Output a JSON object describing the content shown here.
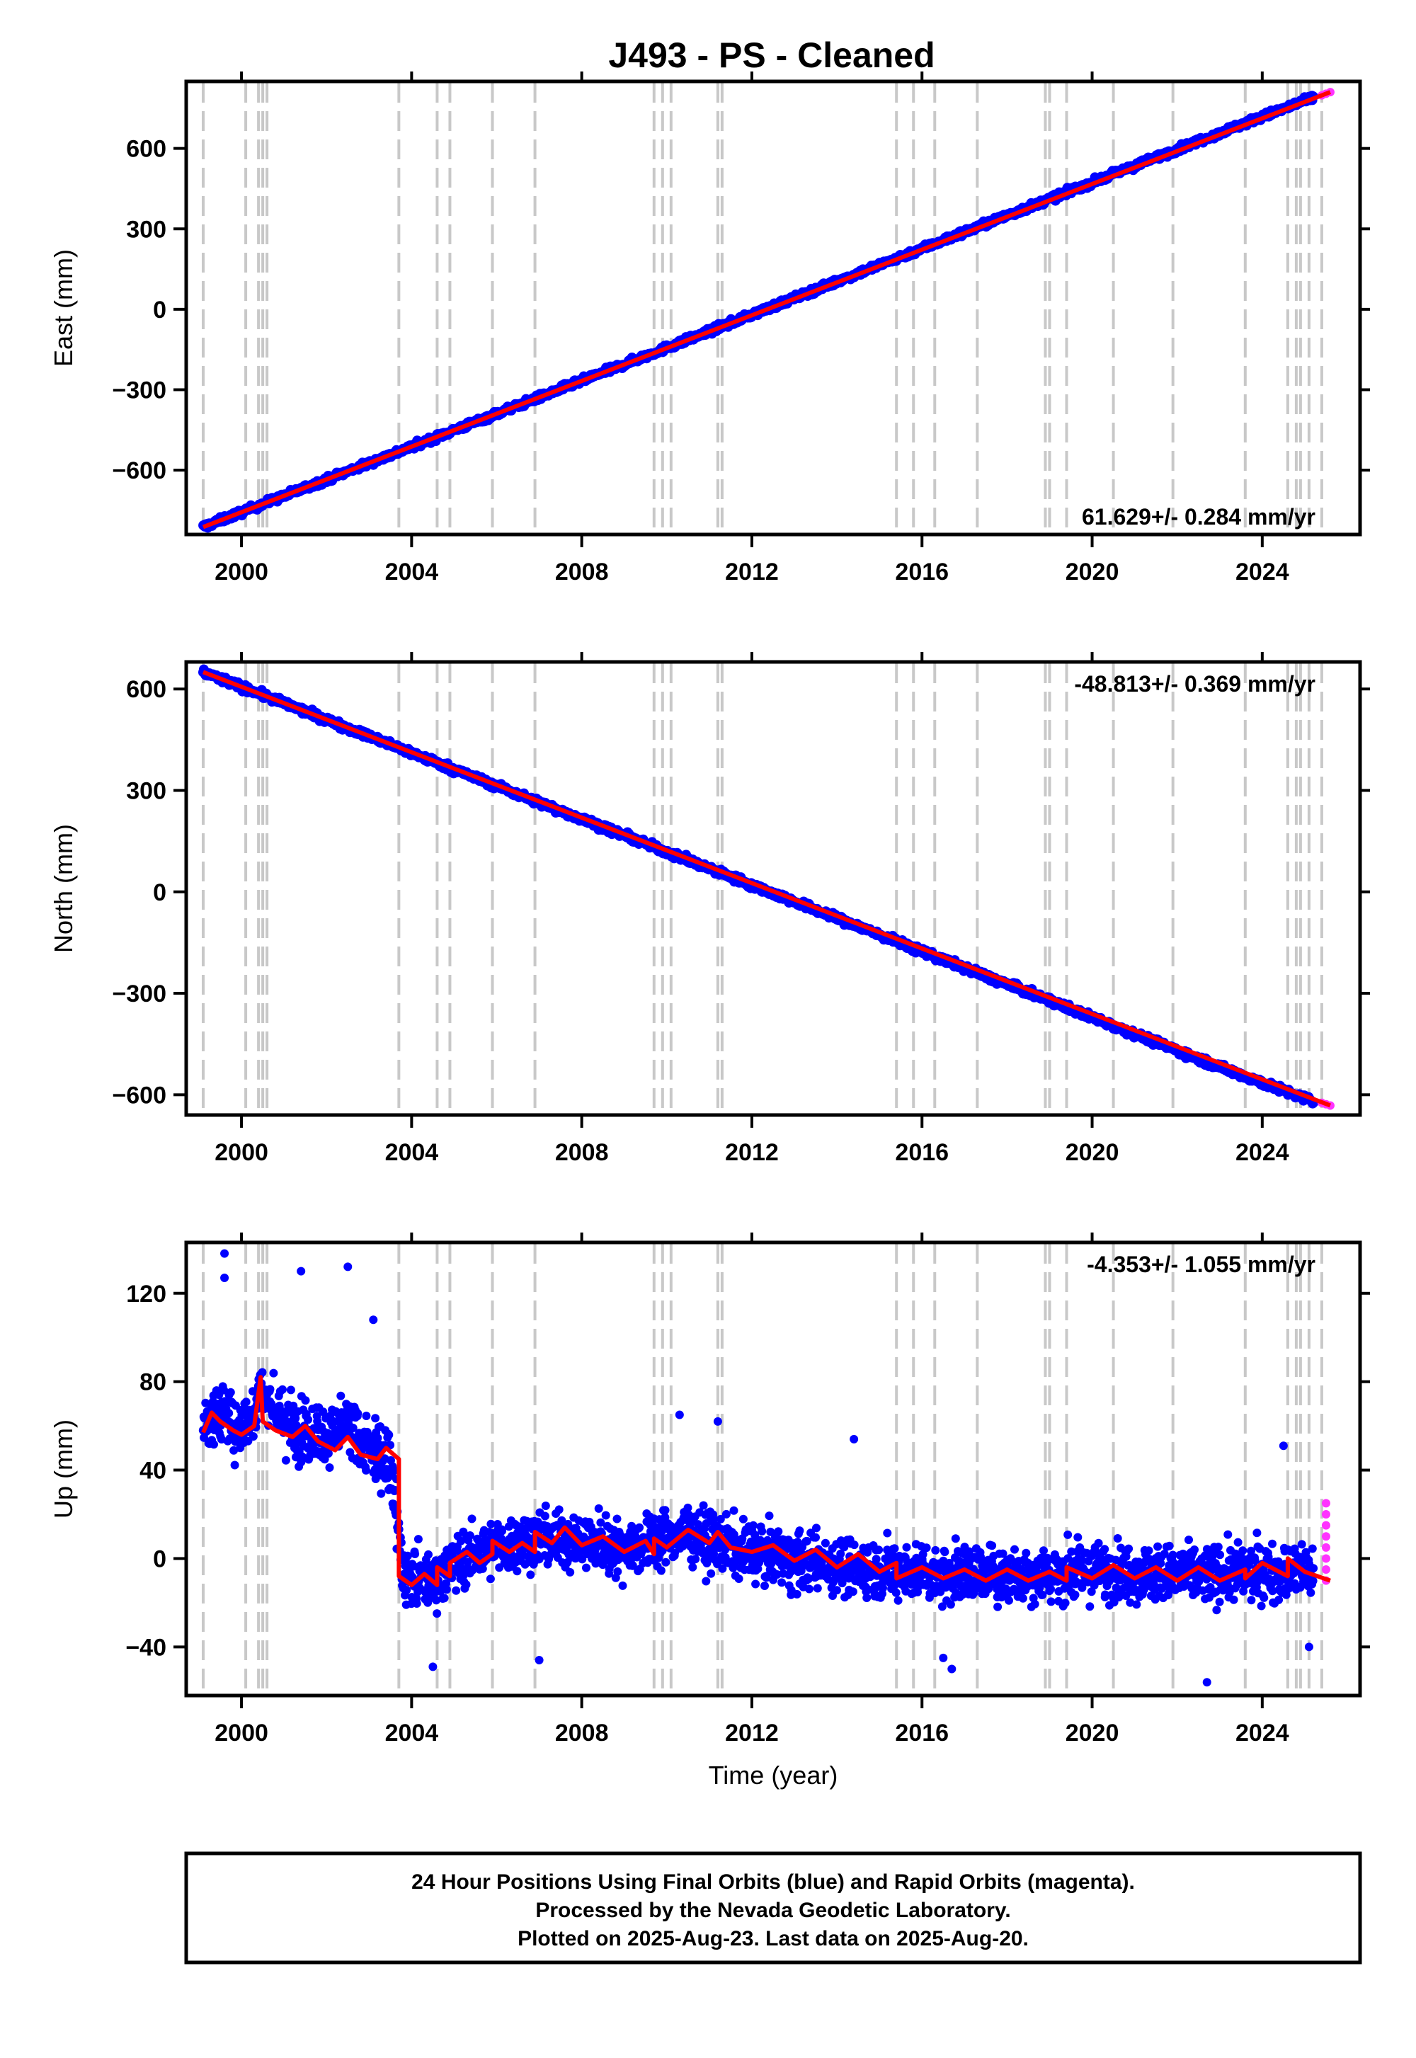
{
  "chart_data": [
    {
      "type": "scatter",
      "title": "J493  - PS - Cleaned",
      "xlabel": "",
      "ylabel": "East (mm)",
      "xlim": [
        1998.7,
        2026.3
      ],
      "ylim": [
        -840,
        850
      ],
      "xticks": [
        2000,
        2004,
        2008,
        2012,
        2016,
        2020,
        2024
      ],
      "yticks": [
        -600,
        -300,
        0,
        300,
        600
      ],
      "ytick_labels": [
        "−600",
        "−300",
        "0",
        "300",
        "600"
      ],
      "rate_label": "61.629+/- 0.284 mm/yr",
      "rate_position": "bottom-right",
      "grid": false,
      "series": [
        {
          "name": "Final Orbits",
          "color": "#0000ff",
          "x": [
            1999.1,
            2001,
            2003,
            2005,
            2007,
            2009,
            2011,
            2013,
            2015,
            2017,
            2019,
            2021,
            2023,
            2025.2
          ],
          "y": [
            -812,
            -696,
            -574,
            -451,
            -328,
            -205,
            -82,
            42,
            165,
            288,
            411,
            535,
            658,
            790
          ]
        },
        {
          "name": "Rapid Orbits",
          "color": "#ff33ff",
          "x": [
            2025.4,
            2025.5,
            2025.6
          ],
          "y": [
            798,
            804,
            810
          ]
        },
        {
          "name": "Model",
          "color": "#ff0000",
          "x": [
            1999.1,
            2025.6
          ],
          "y": [
            -812,
            810
          ]
        }
      ],
      "events": [
        1999.1,
        2000.1,
        2000.4,
        2000.5,
        2000.6,
        2003.7,
        2004.6,
        2004.9,
        2005.9,
        2006.9,
        2009.7,
        2009.9,
        2010.1,
        2011.2,
        2011.3,
        2015.4,
        2015.8,
        2016.3,
        2017.3,
        2018.9,
        2019.0,
        2019.4,
        2020.5,
        2021.9,
        2023.6,
        2024.6,
        2024.8,
        2024.9,
        2025.1,
        2025.4
      ]
    },
    {
      "type": "scatter",
      "title": "",
      "xlabel": "",
      "ylabel": "North (mm)",
      "xlim": [
        1998.7,
        2026.3
      ],
      "ylim": [
        -660,
        680
      ],
      "xticks": [
        2000,
        2004,
        2008,
        2012,
        2016,
        2020,
        2024
      ],
      "yticks": [
        -600,
        -300,
        0,
        300,
        600
      ],
      "ytick_labels": [
        "−600",
        "−300",
        "0",
        "300",
        "600"
      ],
      "rate_label": "-48.813+/- 0.369 mm/yr",
      "rate_position": "top-right",
      "grid": false,
      "series": [
        {
          "name": "Final Orbits",
          "color": "#0000ff",
          "x": [
            1999.1,
            2001,
            2003,
            2005,
            2007,
            2009,
            2011,
            2013,
            2015,
            2017,
            2019,
            2021,
            2023,
            2025.2
          ],
          "y": [
            650,
            558,
            460,
            362,
            264,
            167,
            69,
            -29,
            -127,
            -225,
            -322,
            -420,
            -518,
            -620
          ]
        },
        {
          "name": "Rapid Orbits",
          "color": "#ff33ff",
          "x": [
            2025.4,
            2025.5,
            2025.6
          ],
          "y": [
            -624,
            -628,
            -632
          ]
        },
        {
          "name": "Model",
          "color": "#ff0000",
          "x": [
            1999.1,
            2025.6
          ],
          "y": [
            650,
            -632
          ]
        }
      ],
      "events": [
        1999.1,
        2000.1,
        2000.4,
        2000.5,
        2000.6,
        2003.7,
        2004.6,
        2004.9,
        2005.9,
        2006.9,
        2009.7,
        2009.9,
        2010.1,
        2011.2,
        2011.3,
        2015.4,
        2015.8,
        2016.3,
        2017.3,
        2018.9,
        2019.0,
        2019.4,
        2020.5,
        2021.9,
        2023.6,
        2024.6,
        2024.8,
        2024.9,
        2025.1,
        2025.4
      ]
    },
    {
      "type": "scatter",
      "title": "",
      "xlabel": "Time (year)",
      "ylabel": "Up (mm)",
      "xlim": [
        1998.7,
        2026.3
      ],
      "ylim": [
        -62,
        143
      ],
      "xticks": [
        2000,
        2004,
        2008,
        2012,
        2016,
        2020,
        2024
      ],
      "yticks": [
        -40,
        0,
        40,
        80,
        120
      ],
      "ytick_labels": [
        "−40",
        "0",
        "40",
        "80",
        "120"
      ],
      "rate_label": "-4.353+/- 1.055 mm/yr",
      "rate_position": "top-right",
      "grid": false,
      "series": [
        {
          "name": "Final Orbits",
          "color": "#0000ff",
          "x": [
            1999.1,
            1999.5,
            2000,
            2000.5,
            2001,
            2001.5,
            2002,
            2002.5,
            2003,
            2003.5,
            2003.8,
            2004.5,
            2005,
            2006,
            2007,
            2008,
            2009,
            2010,
            2010.5,
            2011,
            2012,
            2013,
            2014,
            2015,
            2016,
            2017,
            2018,
            2019,
            2020,
            2021,
            2022,
            2023,
            2024,
            2025.2
          ],
          "y": [
            60,
            68,
            58,
            75,
            62,
            58,
            55,
            60,
            50,
            45,
            -8,
            -10,
            -2,
            5,
            9,
            8,
            5,
            10,
            12,
            8,
            3,
            -1,
            -3,
            -5,
            -6,
            -7,
            -7,
            -7,
            -6,
            -6,
            -7,
            -7,
            -6,
            -6
          ]
        },
        {
          "name": "Rapid Orbits",
          "color": "#ff33ff",
          "x": [
            2025.5,
            2025.5,
            2025.5,
            2025.5,
            2025.5,
            2025.5,
            2025.5,
            2025.5
          ],
          "y": [
            25,
            20,
            15,
            10,
            5,
            0,
            -5,
            -10
          ]
        },
        {
          "name": "Model",
          "color": "#ff0000",
          "x": [
            1999.1,
            1999.3,
            1999.5,
            1999.8,
            2000.0,
            2000.3,
            2000.45,
            2000.5,
            2000.8,
            2001.2,
            2001.5,
            2001.8,
            2002.2,
            2002.5,
            2002.8,
            2003.2,
            2003.4,
            2003.7,
            2003.7,
            2004.0,
            2004.3,
            2004.6,
            2004.6,
            2004.9,
            2004.9,
            2005.3,
            2005.6,
            2005.9,
            2005.9,
            2006.3,
            2006.6,
            2006.9,
            2006.9,
            2007.3,
            2007.6,
            2008.0,
            2008.5,
            2009.0,
            2009.5,
            2009.7,
            2009.7,
            2010.0,
            2010.5,
            2011.0,
            2011.2,
            2011.5,
            2012.0,
            2012.5,
            2013.0,
            2013.5,
            2014.0,
            2014.5,
            2015.0,
            2015.4,
            2015.4,
            2016.0,
            2016.5,
            2017.0,
            2017.5,
            2018.0,
            2018.5,
            2019.0,
            2019.4,
            2019.4,
            2020.0,
            2020.5,
            2021.0,
            2021.5,
            2022.0,
            2022.5,
            2023.0,
            2023.6,
            2023.6,
            2024.0,
            2024.6,
            2024.6,
            2025.0,
            2025.6
          ],
          "y": [
            57,
            66,
            62,
            58,
            56,
            60,
            82,
            62,
            58,
            55,
            60,
            53,
            49,
            55,
            47,
            45,
            50,
            45,
            -8,
            -12,
            -7,
            -12,
            -4,
            -8,
            -2,
            3,
            -2,
            2,
            8,
            3,
            7,
            3,
            12,
            7,
            14,
            6,
            10,
            3,
            8,
            2,
            9,
            5,
            13,
            7,
            12,
            5,
            3,
            6,
            -1,
            4,
            -4,
            2,
            -6,
            -2,
            -9,
            -4,
            -9,
            -5,
            -10,
            -5,
            -10,
            -6,
            -10,
            -4,
            -9,
            -3,
            -9,
            -4,
            -10,
            -4,
            -10,
            -5,
            -9,
            -2,
            -8,
            0,
            -6,
            -10
          ]
        }
      ],
      "events": [
        1999.1,
        2000.1,
        2000.4,
        2000.5,
        2000.6,
        2003.7,
        2004.6,
        2004.9,
        2005.9,
        2006.9,
        2009.7,
        2009.9,
        2010.1,
        2011.2,
        2011.3,
        2015.4,
        2015.8,
        2016.3,
        2017.3,
        2018.9,
        2019.0,
        2019.4,
        2020.5,
        2021.9,
        2023.6,
        2024.6,
        2024.8,
        2024.9,
        2025.1,
        2025.4
      ]
    }
  ],
  "footer": {
    "lines": [
      "24 Hour Positions Using Final Orbits (blue) and Rapid Orbits (magenta).",
      "Processed by the Nevada Geodetic Laboratory.",
      "Plotted on 2025-Aug-23. Last data on 2025-Aug-20."
    ]
  }
}
